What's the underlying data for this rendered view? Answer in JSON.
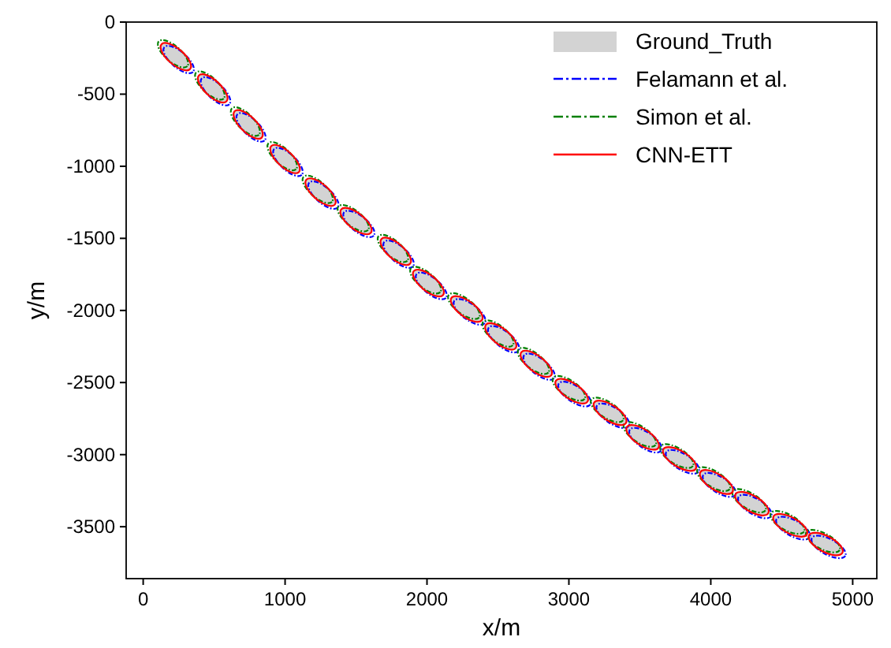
{
  "chart_data": {
    "type": "scatter",
    "marker": "circle",
    "xlabel": "x/m",
    "ylabel": "y/m",
    "xlim": [
      -120,
      5170
    ],
    "ylim": [
      -3860,
      0
    ],
    "xticks": [
      0,
      1000,
      2000,
      3000,
      4000,
      5000
    ],
    "yticks": [
      -3500,
      -3000,
      -2500,
      -2000,
      -1500,
      -1000,
      -500,
      0
    ],
    "legend": "top right",
    "series": [
      {
        "name": "Ground_Truth",
        "color": "#d3d3d3",
        "x": [
          230,
          490,
          740,
          1000,
          1250,
          1500,
          1780,
          2010,
          2280,
          2520,
          2770,
          3020,
          3290,
          3520,
          3780,
          4040,
          4290,
          4560,
          4810
        ],
        "values": [
          -240,
          -460,
          -710,
          -950,
          -1180,
          -1380,
          -1590,
          -1810,
          -1990,
          -2180,
          -2370,
          -2560,
          -2710,
          -2880,
          -3030,
          -3190,
          -3340,
          -3490,
          -3620
        ]
      },
      {
        "name": "Felamann et al.",
        "line_style": "dashdot",
        "color": "#0000ff",
        "x": [
          250,
          510,
          760,
          1020,
          1270,
          1520,
          1800,
          2030,
          2300,
          2540,
          2790,
          3040,
          3310,
          3540,
          3800,
          4060,
          4310,
          4580,
          4830
        ],
        "values": [
          -260,
          -480,
          -730,
          -970,
          -1200,
          -1400,
          -1610,
          -1830,
          -2010,
          -2200,
          -2390,
          -2580,
          -2730,
          -2900,
          -3050,
          -3210,
          -3360,
          -3510,
          -3640
        ]
      },
      {
        "name": "Simon et al.",
        "line_style": "dashdot",
        "color": "#008000",
        "x": [
          210,
          470,
          720,
          980,
          1230,
          1480,
          1760,
          1990,
          2260,
          2500,
          2750,
          3000,
          3270,
          3500,
          3760,
          4020,
          4270,
          4540,
          4790
        ],
        "values": [
          -220,
          -440,
          -690,
          -930,
          -1160,
          -1360,
          -1570,
          -1790,
          -1970,
          -2160,
          -2350,
          -2540,
          -2690,
          -2860,
          -3010,
          -3170,
          -3320,
          -3470,
          -3600
        ]
      },
      {
        "name": "CNN-ETT",
        "line_style": "solid",
        "color": "#ff0000",
        "x": [
          230,
          490,
          740,
          1000,
          1250,
          1500,
          1780,
          2010,
          2280,
          2520,
          2770,
          3020,
          3290,
          3520,
          3780,
          4040,
          4290,
          4560,
          4810
        ],
        "values": [
          -240,
          -460,
          -710,
          -950,
          -1180,
          -1380,
          -1590,
          -1810,
          -1990,
          -2180,
          -2370,
          -2560,
          -2710,
          -2880,
          -3030,
          -3190,
          -3340,
          -3490,
          -3620
        ]
      }
    ]
  }
}
